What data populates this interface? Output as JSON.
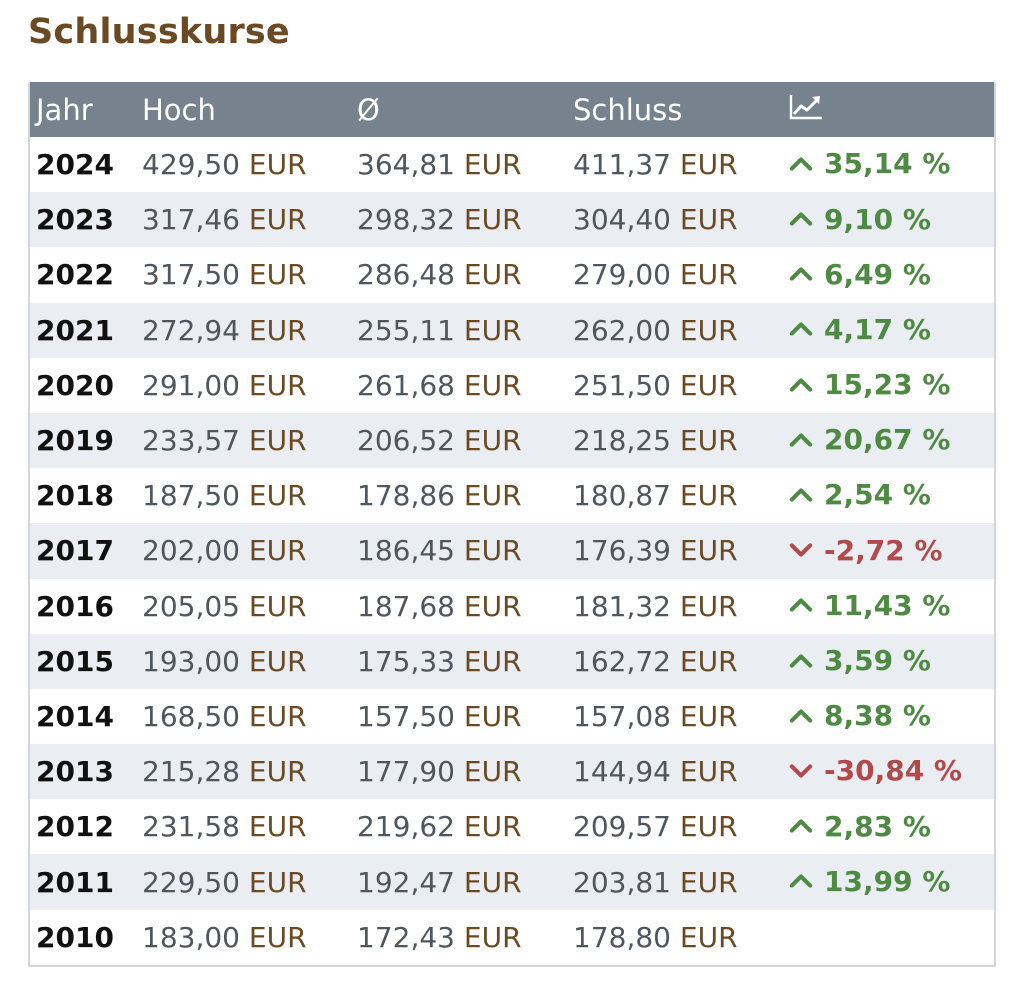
{
  "title": "Schlusskurse",
  "header": {
    "jahr": "Jahr",
    "hoch": "Hoch",
    "avg": "Ø",
    "schluss": "Schluss",
    "perf_icon": "trend-chart-icon"
  },
  "currency": "EUR",
  "colors": {
    "title": "#6b4a23",
    "header_bg": "#76838f",
    "up": "#4e8a43",
    "down": "#b14a4a",
    "stripe": "#eaedf1"
  },
  "rows": [
    {
      "jahr": "2024",
      "hoch": "429,50",
      "avg": "364,81",
      "schluss": "411,37",
      "change": "35,14 %",
      "dir": "up"
    },
    {
      "jahr": "2023",
      "hoch": "317,46",
      "avg": "298,32",
      "schluss": "304,40",
      "change": "9,10 %",
      "dir": "up"
    },
    {
      "jahr": "2022",
      "hoch": "317,50",
      "avg": "286,48",
      "schluss": "279,00",
      "change": "6,49 %",
      "dir": "up"
    },
    {
      "jahr": "2021",
      "hoch": "272,94",
      "avg": "255,11",
      "schluss": "262,00",
      "change": "4,17 %",
      "dir": "up"
    },
    {
      "jahr": "2020",
      "hoch": "291,00",
      "avg": "261,68",
      "schluss": "251,50",
      "change": "15,23 %",
      "dir": "up"
    },
    {
      "jahr": "2019",
      "hoch": "233,57",
      "avg": "206,52",
      "schluss": "218,25",
      "change": "20,67 %",
      "dir": "up"
    },
    {
      "jahr": "2018",
      "hoch": "187,50",
      "avg": "178,86",
      "schluss": "180,87",
      "change": "2,54 %",
      "dir": "up"
    },
    {
      "jahr": "2017",
      "hoch": "202,00",
      "avg": "186,45",
      "schluss": "176,39",
      "change": "-2,72 %",
      "dir": "down"
    },
    {
      "jahr": "2016",
      "hoch": "205,05",
      "avg": "187,68",
      "schluss": "181,32",
      "change": "11,43 %",
      "dir": "up"
    },
    {
      "jahr": "2015",
      "hoch": "193,00",
      "avg": "175,33",
      "schluss": "162,72",
      "change": "3,59 %",
      "dir": "up"
    },
    {
      "jahr": "2014",
      "hoch": "168,50",
      "avg": "157,50",
      "schluss": "157,08",
      "change": "8,38 %",
      "dir": "up"
    },
    {
      "jahr": "2013",
      "hoch": "215,28",
      "avg": "177,90",
      "schluss": "144,94",
      "change": "-30,84 %",
      "dir": "down"
    },
    {
      "jahr": "2012",
      "hoch": "231,58",
      "avg": "219,62",
      "schluss": "209,57",
      "change": "2,83 %",
      "dir": "up"
    },
    {
      "jahr": "2011",
      "hoch": "229,50",
      "avg": "192,47",
      "schluss": "203,81",
      "change": "13,99 %",
      "dir": "up"
    },
    {
      "jahr": "2010",
      "hoch": "183,00",
      "avg": "172,43",
      "schluss": "178,80",
      "change": "",
      "dir": ""
    }
  ]
}
